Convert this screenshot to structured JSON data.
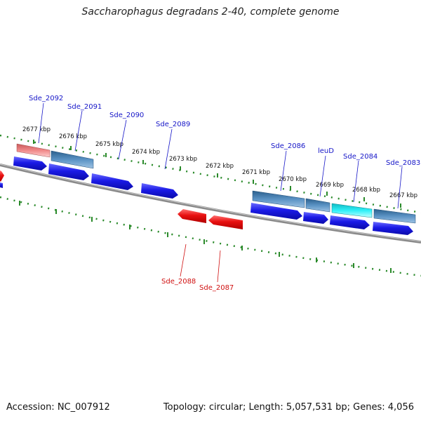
{
  "title": "Saccharophagus degradans 2-40, complete genome",
  "footer": {
    "accession": "Accession: NC_007912",
    "summary": "Topology: circular; Length: 5,057,531 bp; Genes: 4,056"
  },
  "colors": {
    "forward_cds": "#1a1ae6",
    "reverse_cds": "#e81010",
    "reverse_gene": "#e87878",
    "forward_gene": "#4a7fb0",
    "trna_like": "#22e0e8",
    "backbone": "#8a8a8a",
    "ruler": "#2a8a2a",
    "forward_label": "#1616c8",
    "reverse_label": "#d01010"
  },
  "kbp_ticks": [
    "2677 kbp",
    "2676 kbp",
    "2675 kbp",
    "2674 kbp",
    "2673 kbp",
    "2672 kbp",
    "2671 kbp",
    "2670 kbp",
    "2669 kbp",
    "2668 kbp",
    "2667 kbp"
  ],
  "genes_forward": [
    "Sde_2092",
    "Sde_2091",
    "Sde_2090",
    "Sde_2089",
    "Sde_2086",
    "leuD",
    "Sde_2084",
    "Sde_2083"
  ],
  "genes_reverse": [
    "Sde_2088",
    "Sde_2087"
  ]
}
